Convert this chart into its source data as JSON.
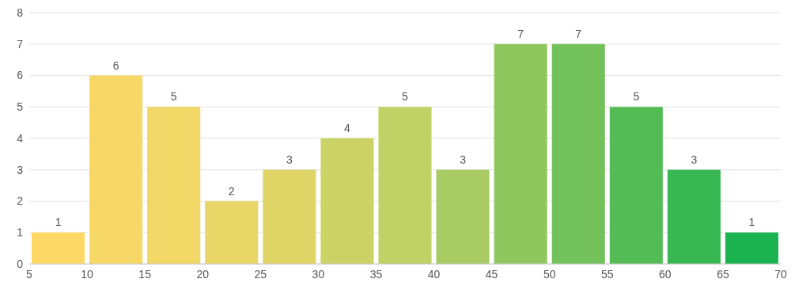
{
  "chart_data": {
    "type": "histogram",
    "bins": [
      5,
      10,
      15,
      20,
      25,
      30,
      35,
      40,
      45,
      50,
      55,
      60,
      65,
      70
    ],
    "values": [
      1,
      6,
      5,
      2,
      3,
      4,
      5,
      3,
      7,
      7,
      5,
      3,
      1
    ],
    "colors": [
      "#fed966",
      "#f7d866",
      "#f0d766",
      "#e8d667",
      "#dfd567",
      "#ccd366",
      "#c0d265",
      "#a8cc63",
      "#8fc75f",
      "#72c15a",
      "#53bc55",
      "#38b852",
      "#1ab34f"
    ],
    "xlim": [
      5,
      70
    ],
    "xticks": [
      5,
      10,
      15,
      20,
      25,
      30,
      35,
      40,
      45,
      50,
      55,
      60,
      65,
      70
    ],
    "ylim": [
      0,
      8
    ],
    "yticks": [
      0,
      1,
      2,
      3,
      4,
      5,
      6,
      7,
      8
    ],
    "grid": "y",
    "data_labels": true
  }
}
